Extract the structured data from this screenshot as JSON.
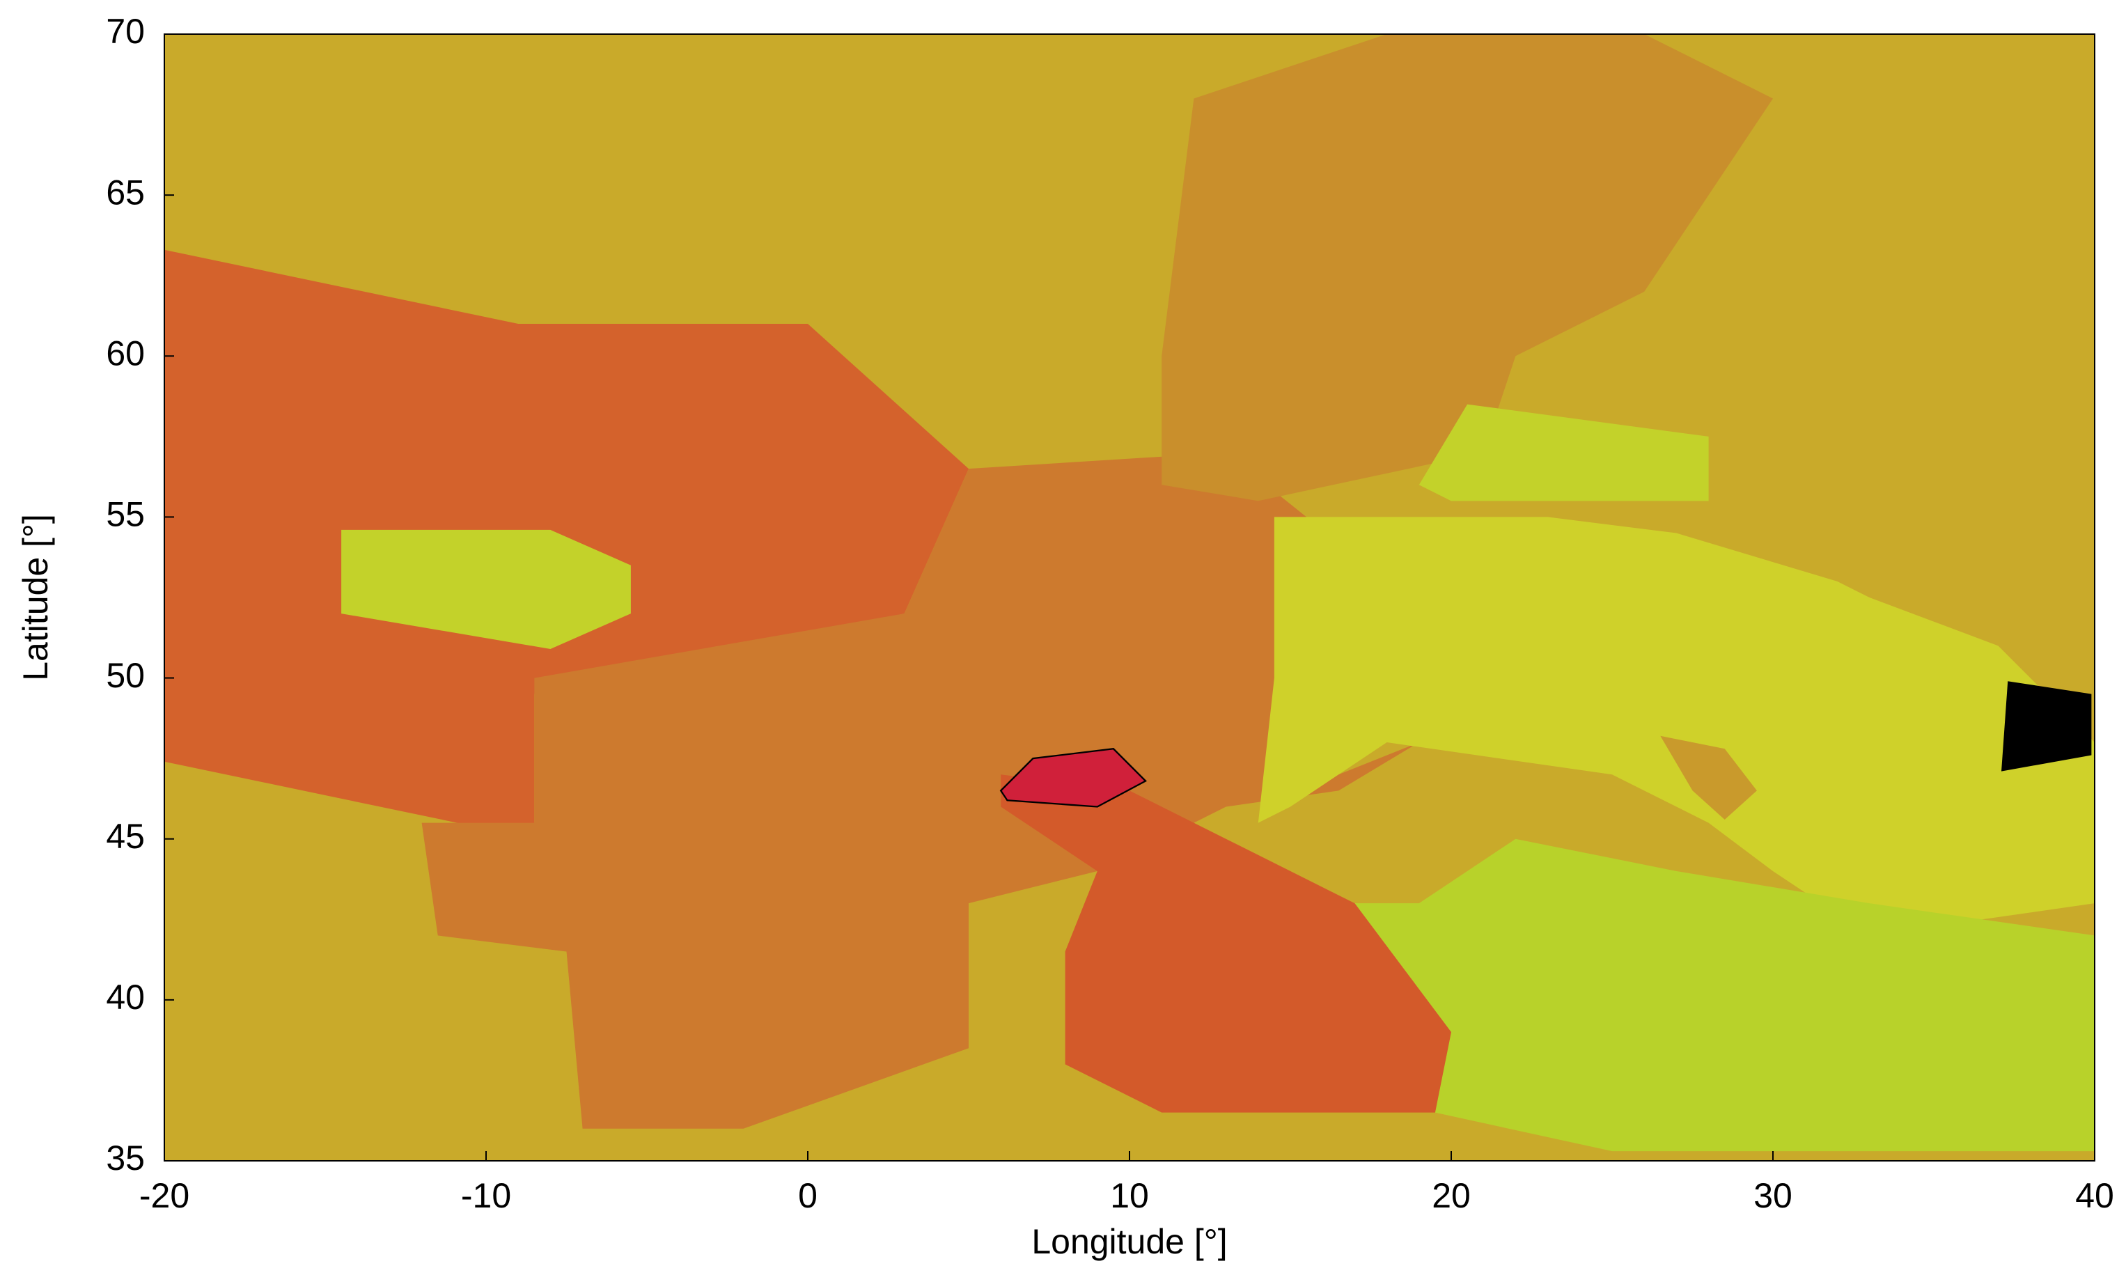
{
  "chart_data": {
    "type": "map",
    "xlabel": "Longitude [°]",
    "ylabel": "Latitude [°]",
    "xlim": [
      -20,
      40
    ],
    "ylim": [
      35,
      70
    ],
    "xticks": [
      -20,
      -10,
      0,
      10,
      20,
      30,
      40
    ],
    "yticks": [
      35,
      40,
      45,
      50,
      55,
      60,
      65,
      70
    ]
  }
}
